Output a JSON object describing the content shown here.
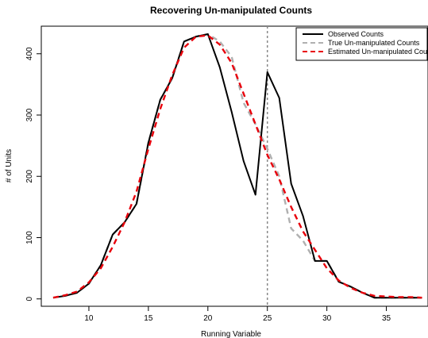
{
  "chart_data": {
    "type": "line",
    "title": "Recovering Un-manipulated Counts",
    "xlabel": "Running Variable",
    "ylabel": "# of Units",
    "xlim": [
      6,
      38.5
    ],
    "ylim": [
      -12,
      445
    ],
    "x_ticks": [
      10,
      15,
      20,
      25,
      30,
      35
    ],
    "y_ticks": [
      0,
      100,
      200,
      300,
      400
    ],
    "grid": false,
    "legend_position": "top-right",
    "cutoff_x": 25,
    "cutoff_color": "#888888",
    "x": [
      7,
      8,
      9,
      10,
      11,
      12,
      13,
      14,
      15,
      16,
      17,
      18,
      19,
      20,
      21,
      22,
      23,
      24,
      25,
      26,
      27,
      28,
      29,
      30,
      31,
      32,
      33,
      34,
      35,
      36,
      37,
      38
    ],
    "series": [
      {
        "name": "Observed Counts",
        "color": "#000000",
        "dash": "solid",
        "values": [
          2,
          5,
          10,
          25,
          55,
          105,
          125,
          155,
          255,
          325,
          360,
          420,
          428,
          432,
          378,
          305,
          225,
          170,
          370,
          328,
          188,
          135,
          62,
          62,
          28,
          20,
          10,
          2,
          2,
          2,
          2,
          2
        ]
      },
      {
        "name": "True Un-manipulated Counts",
        "color": "#b0b0b0",
        "dash": "dashed",
        "values": [
          2,
          5,
          10,
          25,
          55,
          105,
          125,
          155,
          255,
          325,
          360,
          420,
          428,
          432,
          420,
          395,
          320,
          285,
          245,
          200,
          115,
          95,
          62,
          62,
          28,
          20,
          10,
          2,
          2,
          2,
          2,
          2
        ]
      },
      {
        "name": "Estimated Un-manipulated Counts",
        "color": "#e8000b",
        "dash": "dashed",
        "values": [
          2,
          6,
          12,
          27,
          50,
          85,
          125,
          175,
          245,
          310,
          365,
          410,
          428,
          430,
          415,
          385,
          335,
          285,
          235,
          195,
          150,
          110,
          80,
          50,
          30,
          18,
          10,
          5,
          4,
          3,
          3,
          2
        ]
      }
    ]
  }
}
